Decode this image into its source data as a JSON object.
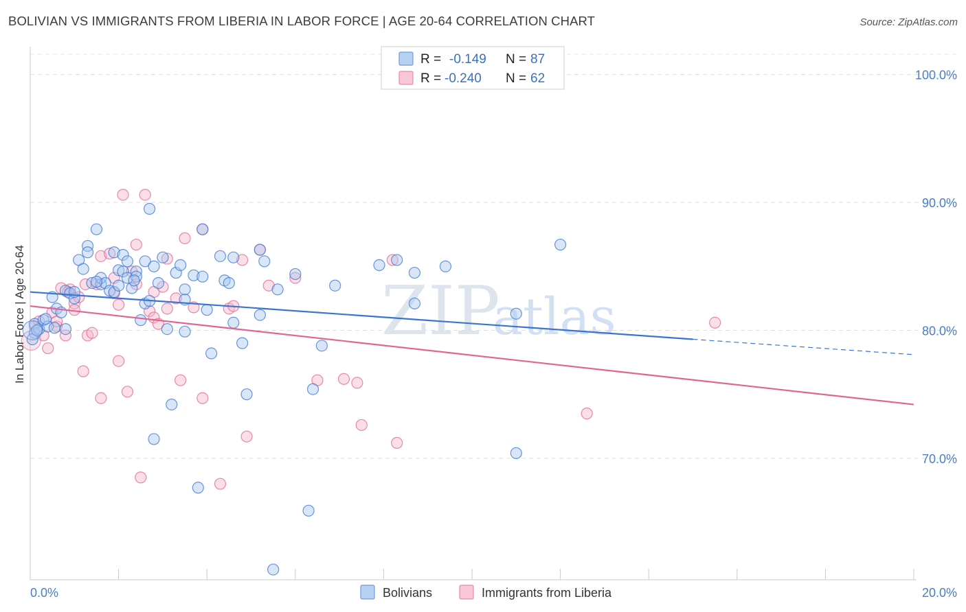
{
  "title": "BOLIVIAN VS IMMIGRANTS FROM LIBERIA IN LABOR FORCE | AGE 20-64 CORRELATION CHART",
  "source": "Source: ZipAtlas.com",
  "colors": {
    "blue": "#3a74d0",
    "blue_fill": "#a9c8f0",
    "pink": "#e06592",
    "pink_fill": "#f4b6cc",
    "axis_label": "#4a7cc7"
  },
  "legend": {
    "r_label": "R =",
    "n_label": "N =",
    "items": [
      {
        "r": "-0.149",
        "n": "87"
      },
      {
        "r": "-0.240",
        "n": "62"
      }
    ]
  },
  "chart_data": {
    "type": "scatter",
    "xlabel": "",
    "ylabel": "In Labor Force | Age 20-64",
    "xlim": [
      0,
      20
    ],
    "ylim": [
      60.5,
      102.5
    ],
    "x_tick_labels": [
      "0.0%",
      "20.0%"
    ],
    "y_ticks": [
      70,
      80,
      90,
      100
    ],
    "y_tick_labels": [
      "70.0%",
      "80.0%",
      "90.0%",
      "100.0%"
    ],
    "grid": true,
    "legend_position": "top-center",
    "watermark": "ZIPatlas",
    "series": [
      {
        "name": "Bolivians",
        "color": "#3a74d0",
        "trend": {
          "x0": 0,
          "y0": 83.0,
          "x1": 15.0,
          "y1": 79.3,
          "dashed_to": 20,
          "dashed_y": 78.1
        },
        "points": [
          [
            0.1,
            80.5
          ],
          [
            0.1,
            79.8
          ],
          [
            0.2,
            80.1
          ],
          [
            0.3,
            80.8
          ],
          [
            0.4,
            80.3
          ],
          [
            0.5,
            82.6
          ],
          [
            0.6,
            81.7
          ],
          [
            0.7,
            81.4
          ],
          [
            0.8,
            80.1
          ],
          [
            0.8,
            83.1
          ],
          [
            0.9,
            82.9
          ],
          [
            1.0,
            82.5
          ],
          [
            1.1,
            85.5
          ],
          [
            1.2,
            84.8
          ],
          [
            1.3,
            86.6
          ],
          [
            1.3,
            86.1
          ],
          [
            1.4,
            83.7
          ],
          [
            1.5,
            87.9
          ],
          [
            1.6,
            83.6
          ],
          [
            1.6,
            84.1
          ],
          [
            1.7,
            83.7
          ],
          [
            1.8,
            83.1
          ],
          [
            1.9,
            86.1
          ],
          [
            1.9,
            83.0
          ],
          [
            2.0,
            83.5
          ],
          [
            2.0,
            84.7
          ],
          [
            2.1,
            84.6
          ],
          [
            2.1,
            85.9
          ],
          [
            2.2,
            84.1
          ],
          [
            2.2,
            85.4
          ],
          [
            2.3,
            83.3
          ],
          [
            2.4,
            84.6
          ],
          [
            2.4,
            84.2
          ],
          [
            2.5,
            80.8
          ],
          [
            2.6,
            85.4
          ],
          [
            2.6,
            82.1
          ],
          [
            2.7,
            89.5
          ],
          [
            2.7,
            82.3
          ],
          [
            2.8,
            71.5
          ],
          [
            2.8,
            85.0
          ],
          [
            2.9,
            83.7
          ],
          [
            3.0,
            85.7
          ],
          [
            3.1,
            80.1
          ],
          [
            3.2,
            74.2
          ],
          [
            3.3,
            84.5
          ],
          [
            3.4,
            85.1
          ],
          [
            3.5,
            83.2
          ],
          [
            3.5,
            82.4
          ],
          [
            3.5,
            79.9
          ],
          [
            3.7,
            84.3
          ],
          [
            3.8,
            67.7
          ],
          [
            3.9,
            87.9
          ],
          [
            3.9,
            84.2
          ],
          [
            4.0,
            81.6
          ],
          [
            4.1,
            78.2
          ],
          [
            4.3,
            85.8
          ],
          [
            4.4,
            83.9
          ],
          [
            4.5,
            83.7
          ],
          [
            4.6,
            85.7
          ],
          [
            4.6,
            80.6
          ],
          [
            4.8,
            79.0
          ],
          [
            4.9,
            75.0
          ],
          [
            5.2,
            86.3
          ],
          [
            5.2,
            81.2
          ],
          [
            5.3,
            85.4
          ],
          [
            5.5,
            61.3
          ],
          [
            5.6,
            83.2
          ],
          [
            6.0,
            84.4
          ],
          [
            6.3,
            65.9
          ],
          [
            6.4,
            75.4
          ],
          [
            6.6,
            78.8
          ],
          [
            6.9,
            83.5
          ],
          [
            7.9,
            85.1
          ],
          [
            8.3,
            85.5
          ],
          [
            8.7,
            84.5
          ],
          [
            8.7,
            82.1
          ],
          [
            9.4,
            85.0
          ],
          [
            11.0,
            81.3
          ],
          [
            11.0,
            70.4
          ],
          [
            12.0,
            86.7
          ],
          [
            0.05,
            79.3
          ],
          [
            0.15,
            80.0
          ],
          [
            0.35,
            80.9
          ],
          [
            0.55,
            80.2
          ],
          [
            1.0,
            83.0
          ],
          [
            1.5,
            83.8
          ],
          [
            2.35,
            83.9
          ]
        ]
      },
      {
        "name": "Immigrants from Liberia",
        "color": "#e06592",
        "trend": {
          "x0": 0,
          "y0": 81.9,
          "x1": 20,
          "y1": 74.2
        },
        "points": [
          [
            0.1,
            80.3
          ],
          [
            0.2,
            80.7
          ],
          [
            0.3,
            79.6
          ],
          [
            0.4,
            78.6
          ],
          [
            0.5,
            81.4
          ],
          [
            0.6,
            80.3
          ],
          [
            0.7,
            83.3
          ],
          [
            0.8,
            79.6
          ],
          [
            0.9,
            83.2
          ],
          [
            1.0,
            82.1
          ],
          [
            1.0,
            81.6
          ],
          [
            1.1,
            82.6
          ],
          [
            1.2,
            76.8
          ],
          [
            1.3,
            79.6
          ],
          [
            1.4,
            79.8
          ],
          [
            1.5,
            83.6
          ],
          [
            1.6,
            85.8
          ],
          [
            1.6,
            74.7
          ],
          [
            1.8,
            86.0
          ],
          [
            1.9,
            82.9
          ],
          [
            1.9,
            84.1
          ],
          [
            2.0,
            82.0
          ],
          [
            2.0,
            77.6
          ],
          [
            2.1,
            90.6
          ],
          [
            2.2,
            75.2
          ],
          [
            2.3,
            84.6
          ],
          [
            2.4,
            86.7
          ],
          [
            2.4,
            83.6
          ],
          [
            2.5,
            68.5
          ],
          [
            2.6,
            90.6
          ],
          [
            2.7,
            81.5
          ],
          [
            2.8,
            83.0
          ],
          [
            2.8,
            81.0
          ],
          [
            2.9,
            80.5
          ],
          [
            3.0,
            83.4
          ],
          [
            3.1,
            81.7
          ],
          [
            3.1,
            85.6
          ],
          [
            3.3,
            82.5
          ],
          [
            3.4,
            76.1
          ],
          [
            3.5,
            87.2
          ],
          [
            3.7,
            81.8
          ],
          [
            3.9,
            87.9
          ],
          [
            3.9,
            74.7
          ],
          [
            4.3,
            68.0
          ],
          [
            4.5,
            81.7
          ],
          [
            4.6,
            81.9
          ],
          [
            4.8,
            85.5
          ],
          [
            4.9,
            71.7
          ],
          [
            5.2,
            86.3
          ],
          [
            5.4,
            83.5
          ],
          [
            6.0,
            84.1
          ],
          [
            6.5,
            76.1
          ],
          [
            7.1,
            76.2
          ],
          [
            7.4,
            75.9
          ],
          [
            7.5,
            72.6
          ],
          [
            8.2,
            85.5
          ],
          [
            8.3,
            71.2
          ],
          [
            12.6,
            73.5
          ],
          [
            15.5,
            80.6
          ],
          [
            0.6,
            80.7
          ],
          [
            0.85,
            83.0
          ],
          [
            1.25,
            83.6
          ]
        ]
      }
    ]
  }
}
